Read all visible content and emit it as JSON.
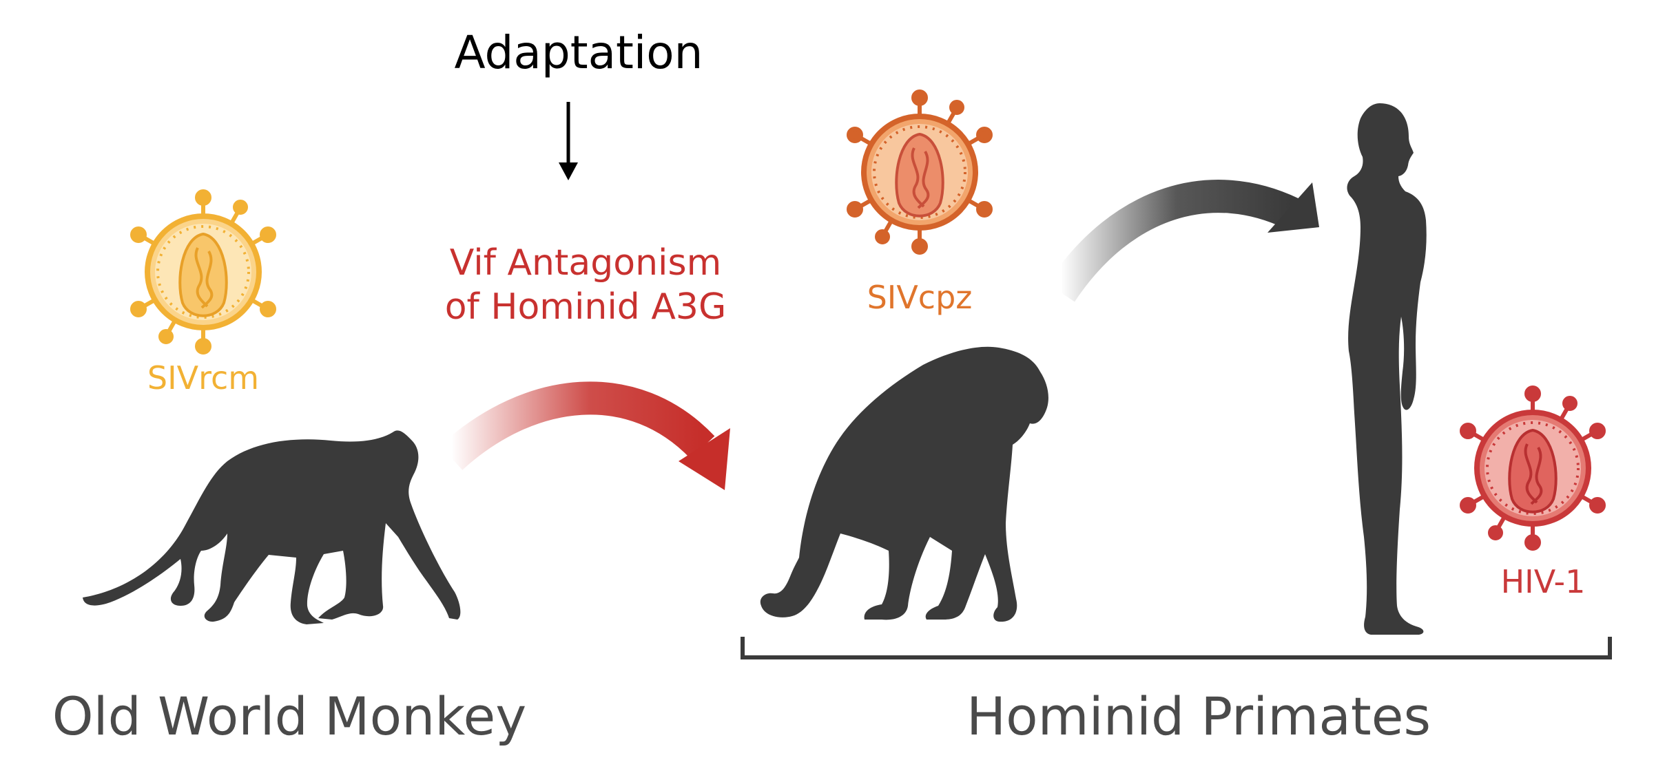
{
  "labels": {
    "adaptation": "Adaptation",
    "vif_line1": "Vif Antagonism",
    "vif_line2": "of Hominid A3G",
    "sivrcm": "SIVrcm",
    "sivcpz": "SIVcpz",
    "hiv1": "HIV-1",
    "old_world_monkey": "Old World Monkey",
    "hominid_primates": "Hominid Primates"
  },
  "colors": {
    "sivrcm": "#f2b134",
    "sivcpz": "#e0752c",
    "hiv1": "#c9393a",
    "vif_text": "#c8312f",
    "transfer_arrow_red": "#c62e2a",
    "transfer_arrow_dark": "#3a3a3a",
    "silhouette": "#3a3a3a",
    "bottom_label": "#4a4a4a"
  },
  "icons": {
    "virus_sivrcm": "virus-icon",
    "virus_sivcpz": "virus-icon",
    "virus_hiv1": "virus-icon",
    "monkey": "monkey-silhouette-icon",
    "chimpanzee": "chimpanzee-silhouette-icon",
    "human": "human-silhouette-icon"
  }
}
